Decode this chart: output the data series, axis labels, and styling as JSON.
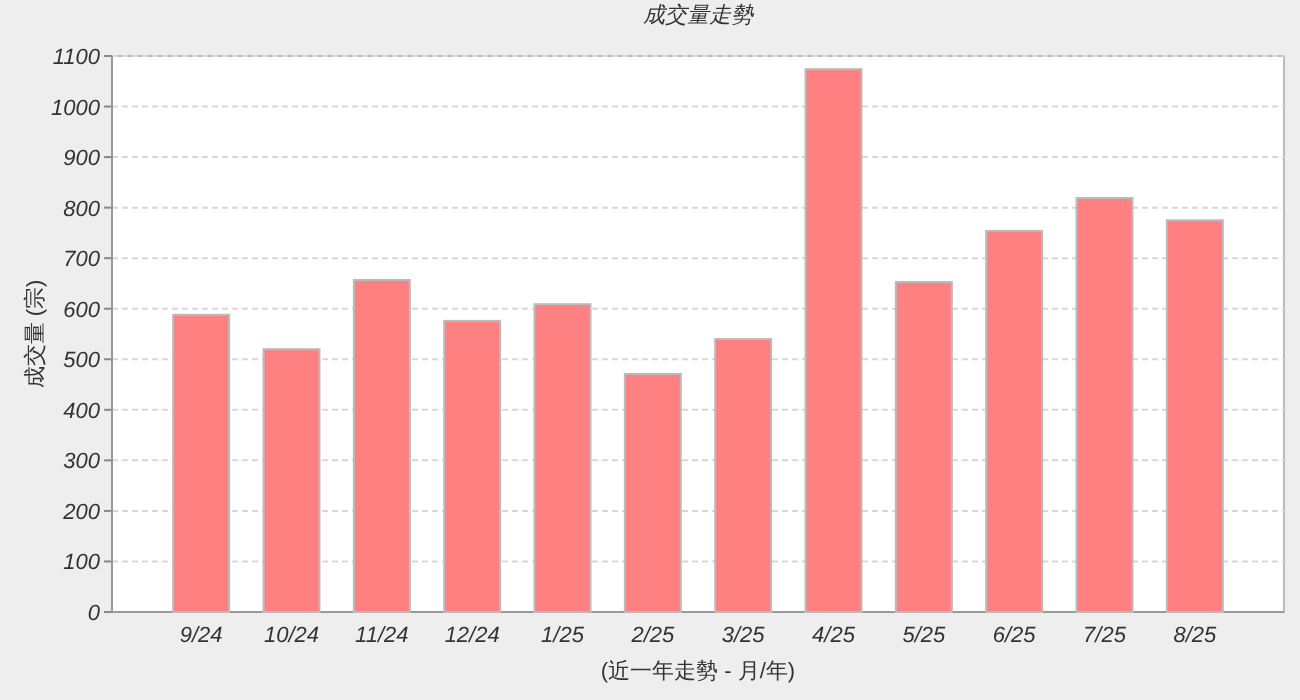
{
  "chart_data": {
    "type": "bar",
    "title": "成交量走勢",
    "xlabel": "(近一年走勢 - 月/年)",
    "ylabel": "成交量 (宗)",
    "categories": [
      "9/24",
      "10/24",
      "11/24",
      "12/24",
      "1/25",
      "2/25",
      "3/25",
      "4/25",
      "5/25",
      "6/25",
      "7/25",
      "8/25"
    ],
    "values": [
      588,
      520,
      657,
      576,
      609,
      471,
      540,
      1074,
      653,
      754,
      819,
      775
    ],
    "color": "#ff8080",
    "ylim": [
      0,
      1100
    ],
    "yticks": [
      0,
      100,
      200,
      300,
      400,
      500,
      600,
      700,
      800,
      900,
      1000,
      1100
    ],
    "grid": "y"
  }
}
